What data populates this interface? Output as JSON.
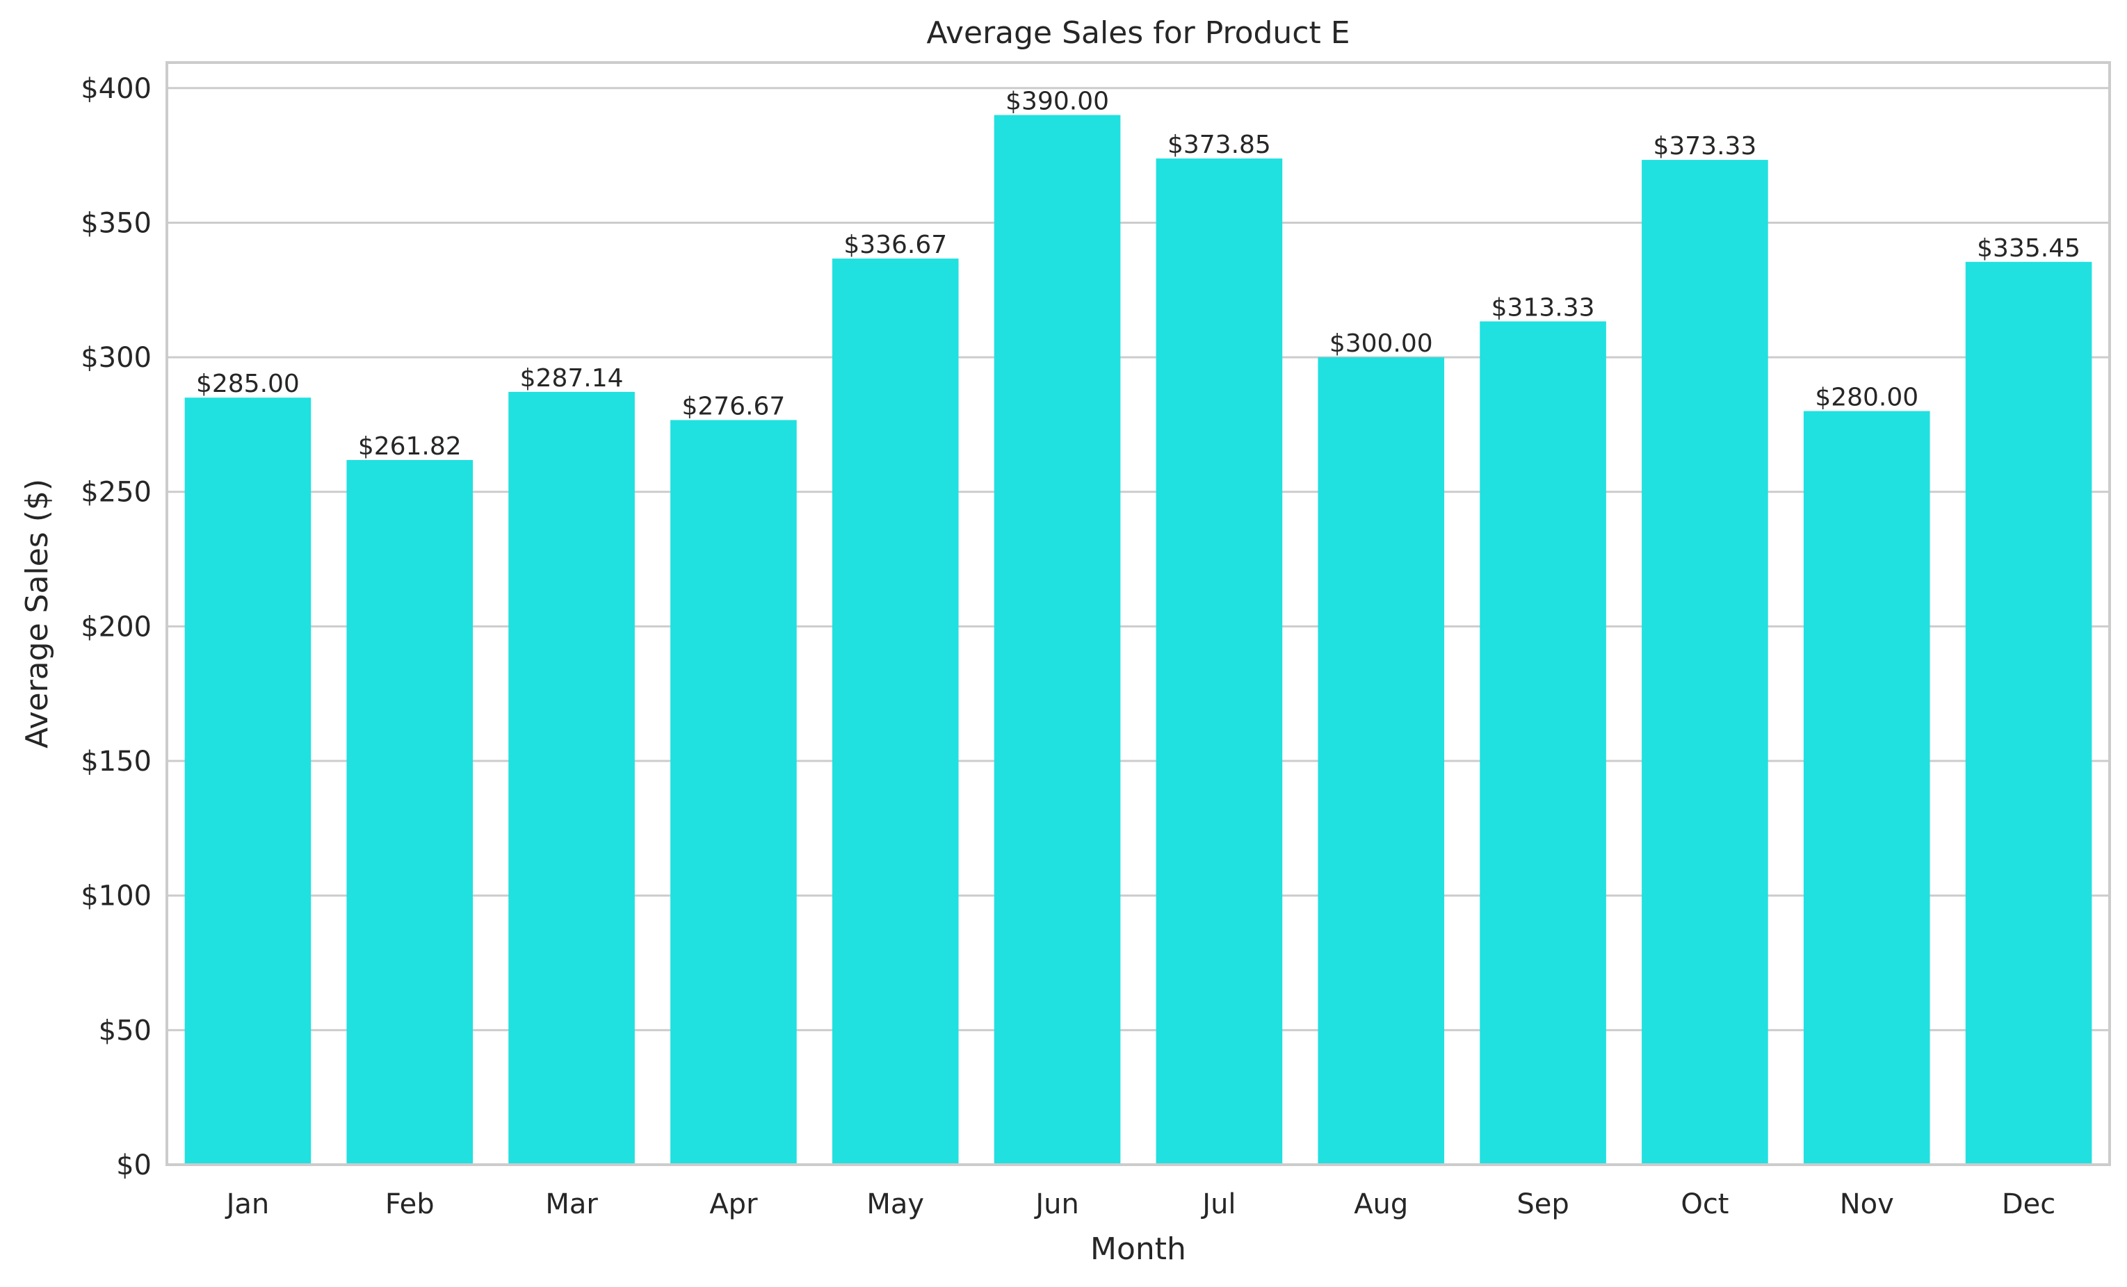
{
  "chart_data": {
    "type": "bar",
    "title": "Average Sales for Product E",
    "xlabel": "Month",
    "ylabel": "Average Sales ($)",
    "categories": [
      "Jan",
      "Feb",
      "Mar",
      "Apr",
      "May",
      "Jun",
      "Jul",
      "Aug",
      "Sep",
      "Oct",
      "Nov",
      "Dec"
    ],
    "values": [
      285.0,
      261.82,
      287.14,
      276.67,
      336.67,
      390.0,
      373.85,
      300.0,
      313.33,
      373.33,
      280.0,
      335.45
    ],
    "value_labels": [
      "$285.00",
      "$261.82",
      "$287.14",
      "$276.67",
      "$336.67",
      "$390.00",
      "$373.85",
      "$300.00",
      "$313.33",
      "$373.33",
      "$280.00",
      "$335.45"
    ],
    "yticks": [
      0,
      50,
      100,
      150,
      200,
      250,
      300,
      350,
      400
    ],
    "ytick_labels": [
      "$0",
      "$50",
      "$100",
      "$150",
      "$200",
      "$250",
      "$300",
      "$350",
      "$400"
    ],
    "ylim": [
      0,
      409.5
    ],
    "grid": true,
    "colors": {
      "bar": "#21e0e0",
      "grid": "#cccccc",
      "text": "#262626"
    }
  }
}
